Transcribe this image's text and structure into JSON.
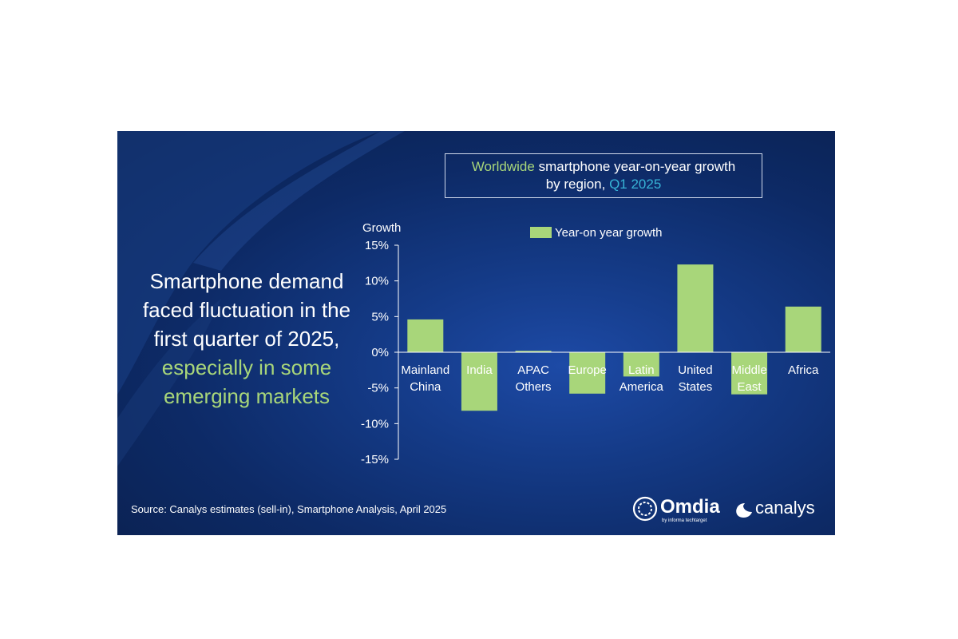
{
  "chart_title": {
    "part1": "Worldwide",
    "part2": " smartphone year-on-year growth",
    "part3": "by region, ",
    "part4": "Q1 2025"
  },
  "headline": {
    "part1": "Smartphone demand faced fluctuation in the first quarter of 2025, ",
    "part2": "especially in some emerging markets"
  },
  "source": "Source: Canalys estimates (sell-in), Smartphone Analysis, April 2025",
  "logos": {
    "omdia": "Omdia",
    "omdia_sub": "by informa techtarget",
    "canalys": "canalys"
  },
  "colors": {
    "bar": "#a8d67a",
    "text": "#ffffff",
    "accent_green": "#a8d67a",
    "accent_teal": "#37b3d6"
  },
  "chart_data": {
    "type": "bar",
    "ylabel": "Growth",
    "ylim": [
      -15,
      15
    ],
    "yticks": [
      15,
      10,
      5,
      0,
      -5,
      -10,
      -15
    ],
    "ytick_labels": [
      "15%",
      "10%",
      "5%",
      "0%",
      "-5%",
      "-10%",
      "-15%"
    ],
    "categories": [
      [
        "Mainland",
        "China"
      ],
      [
        "India"
      ],
      [
        "APAC",
        "Others"
      ],
      [
        "Europe"
      ],
      [
        "Latin",
        "America"
      ],
      [
        "United",
        "States"
      ],
      [
        "Middle",
        "East"
      ],
      [
        "Africa"
      ]
    ],
    "series": [
      {
        "name": "Year-on year growth",
        "values": [
          4.6,
          -8.2,
          0.2,
          -5.8,
          -3.4,
          12.3,
          -5.9,
          6.4
        ]
      }
    ],
    "legend_position": "top"
  }
}
